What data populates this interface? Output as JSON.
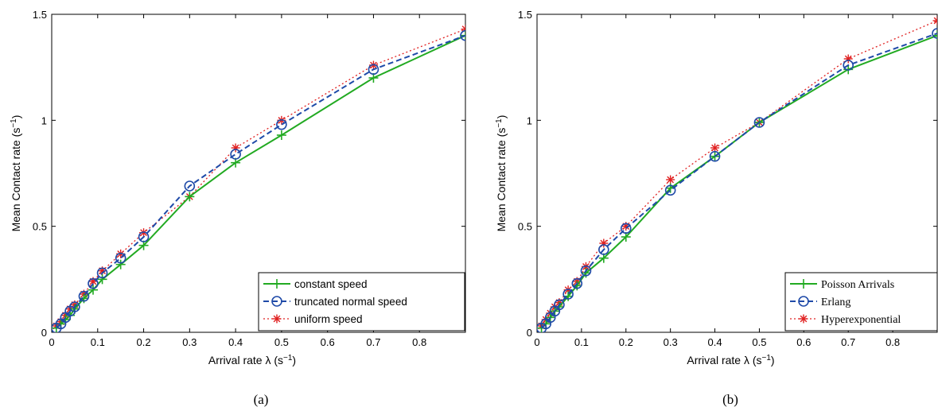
{
  "chart_data": [
    {
      "type": "line",
      "caption": "(a)",
      "xlabel_main": "Arrival rate λ (s",
      "xlabel_sup": "−1",
      "xlabel_end": ")",
      "ylabel_main": "Mean Contact rate (s",
      "ylabel_sup": "−1",
      "ylabel_end": ")",
      "xlim": [
        0,
        0.9
      ],
      "ylim": [
        0,
        1.5
      ],
      "xticks": [
        "0",
        "0.1",
        "0.2",
        "0.3",
        "0.4",
        "0.5",
        "0.6",
        "0.7",
        "0.8"
      ],
      "yticks": [
        "0",
        "0.5",
        "1",
        "1.5"
      ],
      "legend_position": "bottom-right",
      "x": [
        0.01,
        0.02,
        0.03,
        0.04,
        0.05,
        0.07,
        0.09,
        0.11,
        0.15,
        0.2,
        0.3,
        0.4,
        0.5,
        0.7,
        0.9
      ],
      "series": [
        {
          "name": "constant speed",
          "color": "#22aa22",
          "style": "solid",
          "marker": "plus",
          "values": [
            0.02,
            0.04,
            0.06,
            0.08,
            0.11,
            0.16,
            0.2,
            0.25,
            0.32,
            0.41,
            0.64,
            0.8,
            0.93,
            1.2,
            1.4
          ]
        },
        {
          "name": "truncated normal speed",
          "color": "#1f4aa8",
          "style": "dashed",
          "marker": "circle",
          "values": [
            0.02,
            0.04,
            0.07,
            0.1,
            0.12,
            0.17,
            0.23,
            0.28,
            0.35,
            0.45,
            0.69,
            0.84,
            0.98,
            1.24,
            1.4
          ]
        },
        {
          "name": "uniform speed",
          "color": "#e02020",
          "style": "dotted",
          "marker": "star",
          "values": [
            0.03,
            0.05,
            0.08,
            0.11,
            0.13,
            0.18,
            0.24,
            0.29,
            0.37,
            0.47,
            0.64,
            0.87,
            1.0,
            1.26,
            1.43
          ]
        }
      ]
    },
    {
      "type": "line",
      "caption": "(b)",
      "xlabel_main": "Arrival rate λ (s",
      "xlabel_sup": "−1",
      "xlabel_end": ")",
      "ylabel_main": "Mean Contact rate (s",
      "ylabel_sup": "−1",
      "ylabel_end": ")",
      "xlim": [
        0,
        0.9
      ],
      "ylim": [
        0,
        1.5
      ],
      "xticks": [
        "0",
        "0.1",
        "0.2",
        "0.3",
        "0.4",
        "0.5",
        "0.6",
        "0.7",
        "0.8"
      ],
      "yticks": [
        "0",
        "0.5",
        "1",
        "1.5"
      ],
      "legend_position": "bottom-right",
      "x": [
        0.01,
        0.02,
        0.03,
        0.04,
        0.05,
        0.07,
        0.09,
        0.11,
        0.15,
        0.2,
        0.3,
        0.4,
        0.5,
        0.7,
        0.9
      ],
      "series": [
        {
          "name": "Poisson Arrivals",
          "color": "#22aa22",
          "style": "solid",
          "marker": "plus",
          "values": [
            0.02,
            0.04,
            0.07,
            0.1,
            0.12,
            0.17,
            0.22,
            0.28,
            0.35,
            0.45,
            0.68,
            0.83,
            0.99,
            1.24,
            1.4
          ]
        },
        {
          "name": "Erlang",
          "color": "#1f4aa8",
          "style": "dashed",
          "marker": "circle",
          "values": [
            0.02,
            0.04,
            0.07,
            0.1,
            0.13,
            0.18,
            0.23,
            0.29,
            0.39,
            0.49,
            0.67,
            0.83,
            0.99,
            1.26,
            1.41
          ]
        },
        {
          "name": "Hyperexponential",
          "color": "#e02020",
          "style": "dotted",
          "marker": "star",
          "values": [
            0.03,
            0.06,
            0.09,
            0.12,
            0.14,
            0.2,
            0.24,
            0.31,
            0.42,
            0.5,
            0.72,
            0.87,
            0.99,
            1.29,
            1.47
          ]
        }
      ]
    }
  ]
}
